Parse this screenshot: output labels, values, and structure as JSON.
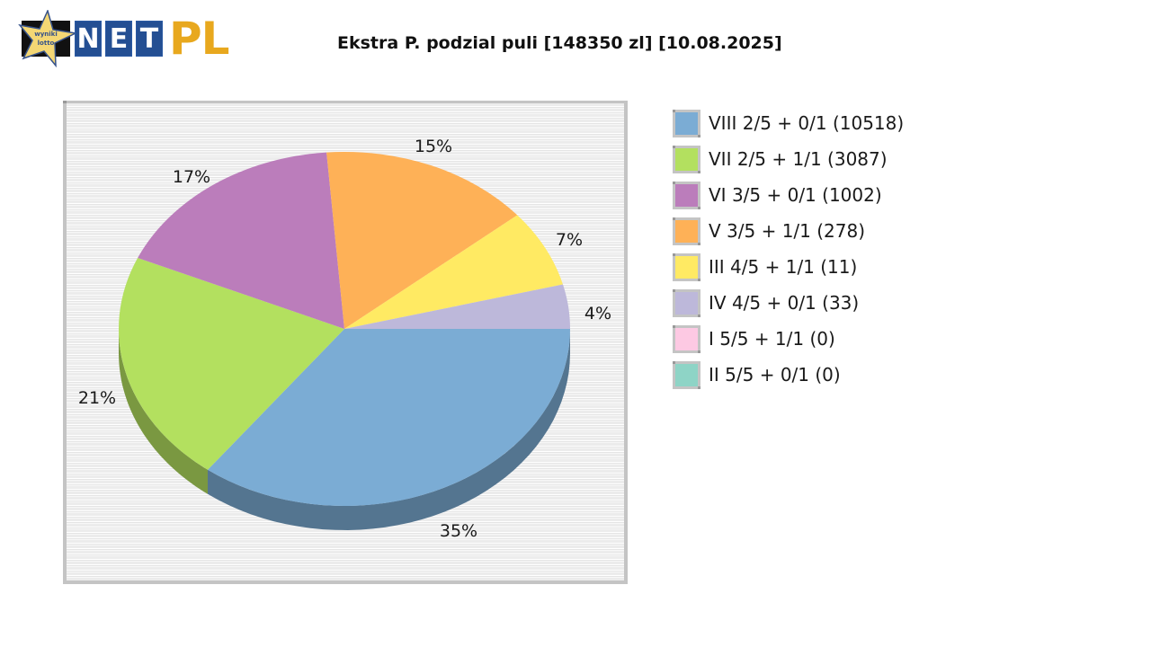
{
  "logo": {
    "badge_text": [
      "wyniki",
      "lotto"
    ],
    "tiles": [
      "N",
      "E",
      "T"
    ],
    "suffix": "PL"
  },
  "title": "Ekstra P. podzial puli [148350 zl] [10.08.2025]",
  "chart_data": {
    "type": "pie",
    "style": "3d",
    "title": "Ekstra P. podzial puli [148350 zl] [10.08.2025]",
    "legend_position": "right",
    "categories": [
      "VIII 2/5 + 0/1 (10518)",
      "VII 2/5 + 1/1 (3087)",
      "VI 3/5 + 0/1 (1002)",
      "V 3/5 + 1/1 (278)",
      "III 4/5 + 1/1 (11)",
      "IV 4/5 + 0/1 (33)",
      "I 5/5 + 1/1 (0)",
      "II 5/5 + 0/1 (0)"
    ],
    "values": [
      35,
      21,
      17,
      15,
      7,
      4,
      0,
      0
    ],
    "winners": [
      10518,
      3087,
      1002,
      278,
      11,
      33,
      0,
      0
    ],
    "slice_labels": [
      "35%",
      "21%",
      "17%",
      "15%",
      "7%",
      "4%",
      "",
      ""
    ],
    "colors": [
      "#7bacd4",
      "#b3e05f",
      "#bb7dbb",
      "#feb157",
      "#ffea63",
      "#bdb8da",
      "#fdc9e3",
      "#8ed4c6"
    ]
  },
  "legend": [
    {
      "label": "VIII 2/5 + 0/1 (10518)",
      "color": "#7bacd4"
    },
    {
      "label": "VII 2/5 + 1/1 (3087)",
      "color": "#b3e05f"
    },
    {
      "label": "VI 3/5 + 0/1 (1002)",
      "color": "#bb7dbb"
    },
    {
      "label": "V 3/5 + 1/1 (278)",
      "color": "#feb157"
    },
    {
      "label": "III 4/5 + 1/1 (11)",
      "color": "#ffea63"
    },
    {
      "label": "IV 4/5 + 0/1 (33)",
      "color": "#bdb8da"
    },
    {
      "label": "I 5/5 + 1/1 (0)",
      "color": "#fdc9e3"
    },
    {
      "label": "II 5/5 + 0/1 (0)",
      "color": "#8ed4c6"
    }
  ]
}
